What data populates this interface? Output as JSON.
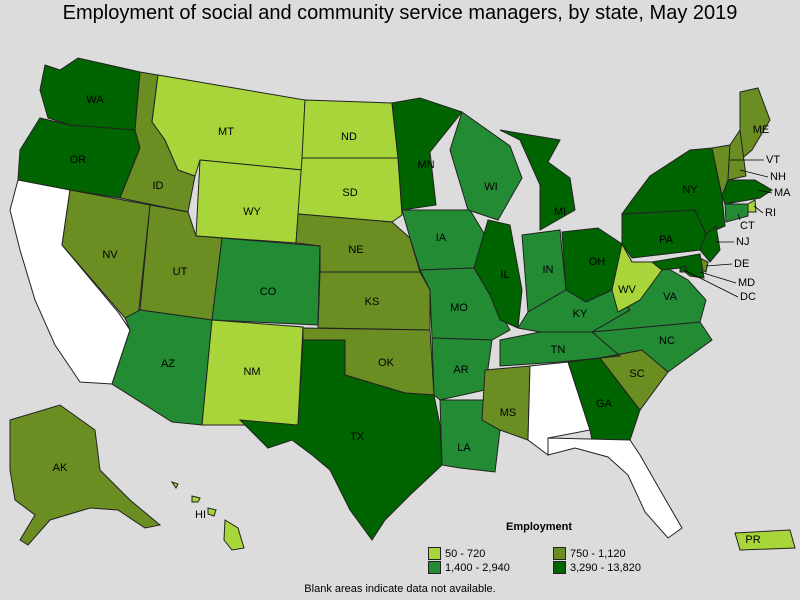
{
  "title": "Employment of social and community service managers, by state, May 2019",
  "note": "Blank areas indicate data not available.",
  "legend": {
    "title": "Employment",
    "items": [
      {
        "label": "50 - 720",
        "color": "#a8d63a"
      },
      {
        "label": "750 - 1,120",
        "color": "#6b8e23"
      },
      {
        "label": "1,400 - 2,940",
        "color": "#228b34"
      },
      {
        "label": "3,290 - 13,820",
        "color": "#006400"
      }
    ]
  },
  "no_data_color": "#ffffff",
  "states": [
    {
      "abbr": "WA",
      "class": 3
    },
    {
      "abbr": "OR",
      "class": 3
    },
    {
      "abbr": "CA",
      "class": null
    },
    {
      "abbr": "ID",
      "class": 1
    },
    {
      "abbr": "NV",
      "class": 1
    },
    {
      "abbr": "MT",
      "class": 0
    },
    {
      "abbr": "WY",
      "class": 0
    },
    {
      "abbr": "UT",
      "class": 1
    },
    {
      "abbr": "AZ",
      "class": 2
    },
    {
      "abbr": "CO",
      "class": 2
    },
    {
      "abbr": "NM",
      "class": 0
    },
    {
      "abbr": "ND",
      "class": 0
    },
    {
      "abbr": "SD",
      "class": 0
    },
    {
      "abbr": "NE",
      "class": 1
    },
    {
      "abbr": "KS",
      "class": 1
    },
    {
      "abbr": "OK",
      "class": 1
    },
    {
      "abbr": "TX",
      "class": 3
    },
    {
      "abbr": "MN",
      "class": 3
    },
    {
      "abbr": "IA",
      "class": 2
    },
    {
      "abbr": "MO",
      "class": 2
    },
    {
      "abbr": "AR",
      "class": 2
    },
    {
      "abbr": "LA",
      "class": 2
    },
    {
      "abbr": "WI",
      "class": 2
    },
    {
      "abbr": "IL",
      "class": 3
    },
    {
      "abbr": "MI",
      "class": 3
    },
    {
      "abbr": "IN",
      "class": 2
    },
    {
      "abbr": "OH",
      "class": 3
    },
    {
      "abbr": "KY",
      "class": 2
    },
    {
      "abbr": "TN",
      "class": 2
    },
    {
      "abbr": "MS",
      "class": 1
    },
    {
      "abbr": "AL",
      "class": null
    },
    {
      "abbr": "GA",
      "class": 3
    },
    {
      "abbr": "FL",
      "class": null
    },
    {
      "abbr": "SC",
      "class": 1
    },
    {
      "abbr": "NC",
      "class": 2
    },
    {
      "abbr": "VA",
      "class": 2
    },
    {
      "abbr": "WV",
      "class": 0
    },
    {
      "abbr": "PA",
      "class": 3
    },
    {
      "abbr": "NY",
      "class": 3
    },
    {
      "abbr": "ME",
      "class": 1
    },
    {
      "abbr": "VT",
      "class": 1
    },
    {
      "abbr": "NH",
      "class": 1
    },
    {
      "abbr": "MA",
      "class": 3
    },
    {
      "abbr": "RI",
      "class": 0
    },
    {
      "abbr": "CT",
      "class": 2
    },
    {
      "abbr": "NJ",
      "class": 3
    },
    {
      "abbr": "DE",
      "class": 1
    },
    {
      "abbr": "MD",
      "class": 3
    },
    {
      "abbr": "DC",
      "class": 3
    },
    {
      "abbr": "AK",
      "class": 1
    },
    {
      "abbr": "HI",
      "class": 0
    },
    {
      "abbr": "PR",
      "class": 0
    }
  ]
}
